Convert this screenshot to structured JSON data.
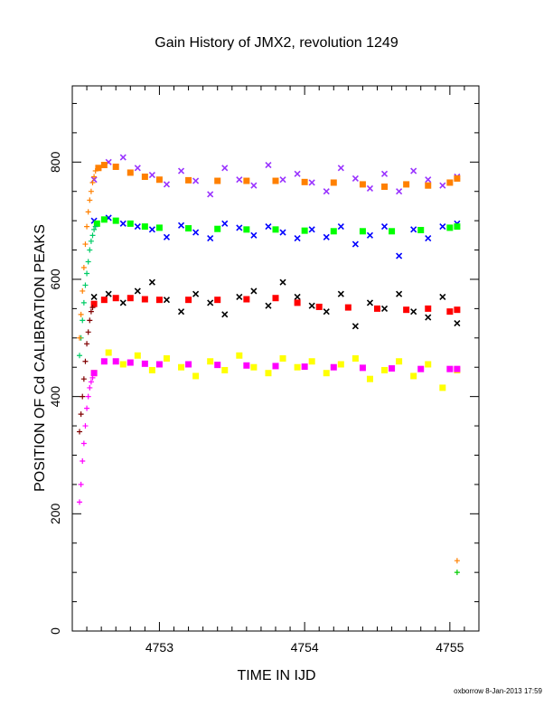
{
  "chart_data": {
    "type": "scatter",
    "title": "Gain History of JMX2, revolution 1249",
    "xlabel": "TIME IN IJD",
    "ylabel": "POSITION OF Cd CALIBRATION PEAKS",
    "xlim": [
      4752.4,
      4755.2
    ],
    "ylim": [
      0,
      930
    ],
    "x_ticks": [
      "4753",
      "4754",
      "4755"
    ],
    "y_ticks": [
      "0",
      "200",
      "400",
      "600",
      "800"
    ],
    "grid": false,
    "legend": "none",
    "footer": "oxborrow  8-Jan-2013 17:59",
    "series": [
      {
        "marker": "x",
        "color": "#9933ff",
        "x": [
          4752.55,
          4752.65,
          4752.75,
          4752.85,
          4752.95,
          4753.05,
          4753.15,
          4753.25,
          4753.35,
          4753.45,
          4753.55,
          4753.65,
          4753.75,
          4753.85,
          4753.95,
          4754.05,
          4754.15,
          4754.25,
          4754.35,
          4754.45,
          4754.55,
          4754.65,
          4754.75,
          4754.85,
          4754.95,
          4755.05
        ],
        "y": [
          770,
          800,
          808,
          790,
          778,
          762,
          785,
          768,
          745,
          790,
          770,
          760,
          795,
          770,
          780,
          765,
          750,
          790,
          772,
          755,
          780,
          750,
          785,
          770,
          760,
          775
        ]
      },
      {
        "marker": "square",
        "color": "#ff8000",
        "x": [
          4752.58,
          4752.62,
          4752.7,
          4752.8,
          4752.9,
          4753.0,
          4753.2,
          4753.4,
          4753.6,
          4753.8,
          4754.0,
          4754.2,
          4754.4,
          4754.55,
          4754.7,
          4754.85,
          4755.0,
          4755.05
        ],
        "y": [
          790,
          795,
          792,
          782,
          775,
          770,
          769,
          768,
          768,
          768,
          766,
          765,
          762,
          758,
          762,
          760,
          765,
          772
        ]
      },
      {
        "marker": "x",
        "color": "#0000ff",
        "x": [
          4752.55,
          4752.65,
          4752.75,
          4752.85,
          4752.95,
          4753.05,
          4753.15,
          4753.25,
          4753.35,
          4753.45,
          4753.55,
          4753.65,
          4753.75,
          4753.85,
          4753.95,
          4754.05,
          4754.15,
          4754.25,
          4754.35,
          4754.45,
          4754.55,
          4754.65,
          4754.75,
          4754.85,
          4754.95,
          4755.05
        ],
        "y": [
          700,
          705,
          695,
          690,
          685,
          672,
          692,
          680,
          670,
          695,
          688,
          675,
          690,
          680,
          670,
          685,
          672,
          690,
          660,
          675,
          690,
          640,
          685,
          670,
          690,
          695
        ]
      },
      {
        "marker": "square",
        "color": "#00ff00",
        "x": [
          4752.57,
          4752.62,
          4752.7,
          4752.8,
          4752.9,
          4753.0,
          4753.2,
          4753.4,
          4753.6,
          4753.8,
          4754.0,
          4754.2,
          4754.4,
          4754.6,
          4754.8,
          4755.0,
          4755.05
        ],
        "y": [
          695,
          702,
          700,
          695,
          690,
          688,
          687,
          686,
          685,
          685,
          683,
          682,
          682,
          682,
          684,
          688,
          690
        ]
      },
      {
        "marker": "x",
        "color": "#000000",
        "x": [
          4752.55,
          4752.65,
          4752.75,
          4752.85,
          4752.95,
          4753.05,
          4753.15,
          4753.25,
          4753.35,
          4753.45,
          4753.55,
          4753.65,
          4753.75,
          4753.85,
          4753.95,
          4754.05,
          4754.15,
          4754.25,
          4754.35,
          4754.45,
          4754.55,
          4754.65,
          4754.75,
          4754.85,
          4754.95,
          4755.05
        ],
        "y": [
          570,
          575,
          560,
          580,
          595,
          565,
          545,
          575,
          560,
          540,
          570,
          580,
          555,
          595,
          570,
          555,
          545,
          575,
          520,
          560,
          550,
          575,
          545,
          535,
          570,
          525
        ]
      },
      {
        "marker": "square",
        "color": "#ff0000",
        "x": [
          4752.55,
          4752.62,
          4752.7,
          4752.8,
          4752.9,
          4753.0,
          4753.2,
          4753.4,
          4753.6,
          4753.8,
          4753.95,
          4754.1,
          4754.3,
          4754.5,
          4754.7,
          4754.85,
          4755.0,
          4755.05
        ],
        "y": [
          558,
          565,
          568,
          568,
          566,
          565,
          565,
          565,
          566,
          568,
          560,
          553,
          552,
          550,
          548,
          550,
          545,
          548
        ]
      },
      {
        "marker": "square",
        "color": "#ffff00",
        "x": [
          4752.55,
          4752.65,
          4752.75,
          4752.85,
          4752.95,
          4753.05,
          4753.15,
          4753.25,
          4753.35,
          4753.45,
          4753.55,
          4753.65,
          4753.75,
          4753.85,
          4753.95,
          4754.05,
          4754.15,
          4754.25,
          4754.35,
          4754.45,
          4754.55,
          4754.65,
          4754.75,
          4754.85,
          4754.95,
          4755.05
        ],
        "y": [
          440,
          475,
          455,
          470,
          445,
          465,
          450,
          435,
          460,
          445,
          470,
          450,
          440,
          465,
          450,
          460,
          440,
          455,
          465,
          430,
          445,
          460,
          435,
          455,
          415,
          445
        ]
      },
      {
        "marker": "square",
        "color": "#ff00ff",
        "x": [
          4752.55,
          4752.62,
          4752.7,
          4752.8,
          4752.9,
          4753.0,
          4753.2,
          4753.4,
          4753.6,
          4753.8,
          4754.0,
          4754.2,
          4754.4,
          4754.6,
          4754.8,
          4755.0,
          4755.05
        ],
        "y": [
          440,
          460,
          460,
          458,
          456,
          455,
          455,
          454,
          453,
          452,
          451,
          450,
          449,
          448,
          447,
          447,
          447
        ]
      },
      {
        "marker": "plus",
        "color": "#ff00ff",
        "x": [
          4752.45,
          4752.46,
          4752.47,
          4752.48,
          4752.49,
          4752.5,
          4752.51,
          4752.52,
          4752.53,
          4752.54
        ],
        "y": [
          220,
          250,
          290,
          320,
          350,
          380,
          400,
          415,
          425,
          432
        ]
      },
      {
        "marker": "plus",
        "color": "#800000",
        "x": [
          4752.45,
          4752.46,
          4752.47,
          4752.48,
          4752.49,
          4752.5,
          4752.51,
          4752.52,
          4752.53,
          4752.54
        ],
        "y": [
          340,
          370,
          400,
          430,
          460,
          490,
          510,
          530,
          545,
          552
        ]
      },
      {
        "marker": "plus",
        "color": "#00cc66",
        "x": [
          4752.45,
          4752.46,
          4752.47,
          4752.48,
          4752.49,
          4752.5,
          4752.51,
          4752.52,
          4752.53,
          4752.54,
          4752.55,
          4752.56
        ],
        "y": [
          470,
          500,
          530,
          560,
          590,
          610,
          630,
          650,
          665,
          675,
          685,
          690
        ]
      },
      {
        "marker": "plus",
        "color": "#ff8000",
        "x": [
          4752.45,
          4752.46,
          4752.47,
          4752.48,
          4752.49,
          4752.5,
          4752.51,
          4752.52,
          4752.53,
          4752.54,
          4752.55,
          4752.56,
          4755.05
        ],
        "y": [
          500,
          540,
          580,
          620,
          660,
          690,
          715,
          735,
          750,
          765,
          775,
          785,
          120
        ]
      },
      {
        "marker": "plus",
        "color": "#00cc00",
        "x": [
          4755.05
        ],
        "y": [
          100
        ]
      }
    ]
  }
}
